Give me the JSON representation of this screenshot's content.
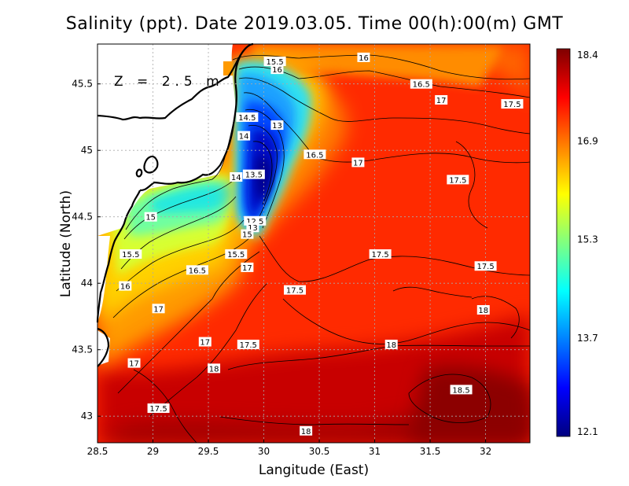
{
  "title": "Salinity (ppt). Date 2019.03.05. Time 00(h):00(m) GMT",
  "depth_label": "Z = 2.5 m",
  "axes": {
    "xlabel": "Langitude (East)",
    "ylabel": "Latitude (North)",
    "xlim": [
      28.5,
      32.4
    ],
    "ylim": [
      42.8,
      45.8
    ],
    "x_ticks": [
      "28.5",
      "29",
      "29.5",
      "30",
      "30.5",
      "31",
      "31.5",
      "32"
    ],
    "y_ticks": [
      "43",
      "43.5",
      "44",
      "44.5",
      "45",
      "45.5"
    ],
    "grid": true
  },
  "colorbar": {
    "min": 12.1,
    "max": 18.4,
    "tick_values": [
      12.1,
      13.7,
      15.3,
      16.9,
      18.4
    ],
    "tick_labels": [
      "12.1",
      "13.7",
      "15.3",
      "16.9",
      "18.4"
    ],
    "colors": [
      "#00007f",
      "#0000ff",
      "#0080ff",
      "#00ffff",
      "#80ff80",
      "#ffff00",
      "#ff8000",
      "#ff0000",
      "#7f0000"
    ]
  },
  "contour_labels": [
    {
      "text": "15.5",
      "lon": 30.1,
      "lat": 45.67
    },
    {
      "text": "16",
      "lon": 30.12,
      "lat": 45.61
    },
    {
      "text": "16",
      "lon": 30.9,
      "lat": 45.7
    },
    {
      "text": "16.5",
      "lon": 31.42,
      "lat": 45.5
    },
    {
      "text": "17",
      "lon": 31.6,
      "lat": 45.38
    },
    {
      "text": "17.5",
      "lon": 32.24,
      "lat": 45.35
    },
    {
      "text": "14.5",
      "lon": 29.85,
      "lat": 45.25
    },
    {
      "text": "13",
      "lon": 30.12,
      "lat": 45.19
    },
    {
      "text": "14",
      "lon": 29.82,
      "lat": 45.11
    },
    {
      "text": "16.5",
      "lon": 30.46,
      "lat": 44.97
    },
    {
      "text": "17",
      "lon": 30.85,
      "lat": 44.91
    },
    {
      "text": "13.5",
      "lon": 29.91,
      "lat": 44.82
    },
    {
      "text": "14",
      "lon": 29.75,
      "lat": 44.8
    },
    {
      "text": "17.5",
      "lon": 31.75,
      "lat": 44.78
    },
    {
      "text": "15",
      "lon": 28.98,
      "lat": 44.5
    },
    {
      "text": "12.5",
      "lon": 29.92,
      "lat": 44.47
    },
    {
      "text": "13",
      "lon": 29.9,
      "lat": 44.42
    },
    {
      "text": "15",
      "lon": 29.85,
      "lat": 44.37
    },
    {
      "text": "15.5",
      "lon": 28.8,
      "lat": 44.22
    },
    {
      "text": "15.5",
      "lon": 29.75,
      "lat": 44.22
    },
    {
      "text": "17.5",
      "lon": 31.05,
      "lat": 44.22
    },
    {
      "text": "16.5",
      "lon": 29.4,
      "lat": 44.1
    },
    {
      "text": "17",
      "lon": 29.85,
      "lat": 44.12
    },
    {
      "text": "17.5",
      "lon": 32.0,
      "lat": 44.13
    },
    {
      "text": "16",
      "lon": 28.75,
      "lat": 43.98
    },
    {
      "text": "17.5",
      "lon": 30.28,
      "lat": 43.95
    },
    {
      "text": "17",
      "lon": 29.05,
      "lat": 43.81
    },
    {
      "text": "18",
      "lon": 31.98,
      "lat": 43.8
    },
    {
      "text": "17",
      "lon": 29.47,
      "lat": 43.56
    },
    {
      "text": "17.5",
      "lon": 29.86,
      "lat": 43.54
    },
    {
      "text": "18",
      "lon": 31.15,
      "lat": 43.54
    },
    {
      "text": "17",
      "lon": 28.83,
      "lat": 43.4
    },
    {
      "text": "18",
      "lon": 29.55,
      "lat": 43.36
    },
    {
      "text": "18.5",
      "lon": 31.78,
      "lat": 43.2
    },
    {
      "text": "17.5",
      "lon": 29.05,
      "lat": 43.06
    },
    {
      "text": "18",
      "lon": 30.38,
      "lat": 42.89
    }
  ]
}
